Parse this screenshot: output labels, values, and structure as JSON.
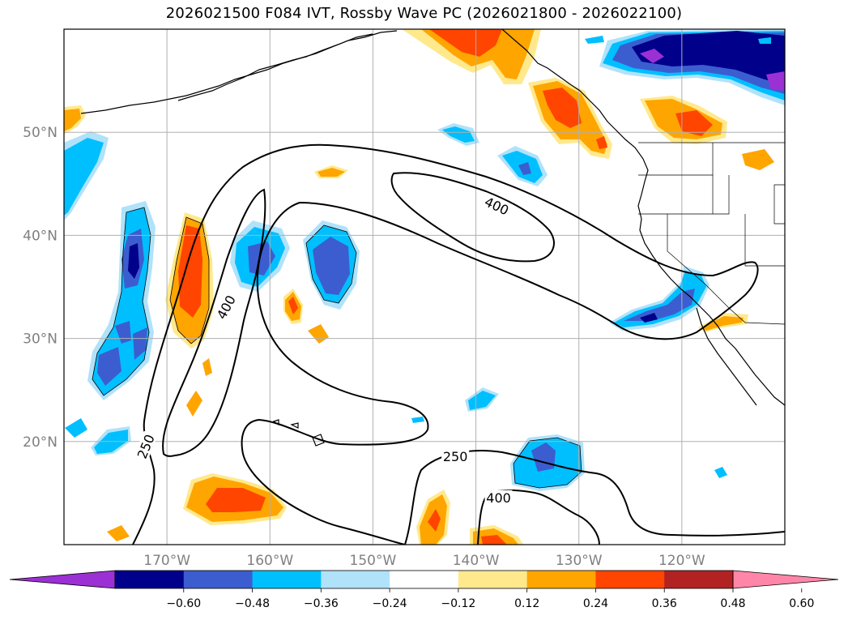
{
  "title": "2026021500 F084 IVT, Rossby Wave PC (2026021800 - 2026022100)",
  "map": {
    "extent": {
      "lon_min": -180,
      "lon_max": -110,
      "lat_min": 10,
      "lat_max": 60
    },
    "lat_labels": [
      {
        "lat": 50,
        "label": "50°N"
      },
      {
        "lat": 40,
        "label": "40°N"
      },
      {
        "lat": 30,
        "label": "30°N"
      },
      {
        "lat": 20,
        "label": "20°N"
      }
    ],
    "lon_labels": [
      {
        "lon": -170,
        "label": "170°W"
      },
      {
        "lon": -160,
        "label": "160°W"
      },
      {
        "lon": -150,
        "label": "150°W"
      },
      {
        "lon": -140,
        "label": "140°W"
      },
      {
        "lon": -130,
        "label": "130°W"
      },
      {
        "lon": -120,
        "label": "120°W"
      }
    ],
    "contour_labels": [
      {
        "text": "400",
        "lon": -138,
        "lat": 42.8,
        "rotate": 25
      },
      {
        "text": "400",
        "lon": -164.2,
        "lat": 33,
        "rotate": -62
      },
      {
        "text": "250",
        "lon": -172,
        "lat": 19.5,
        "rotate": -68
      },
      {
        "text": "250",
        "lon": -142,
        "lat": 18.5,
        "rotate": 0
      },
      {
        "text": "400",
        "lon": -137.8,
        "lat": 14.5,
        "rotate": 0
      }
    ]
  },
  "colorbar": {
    "colors": [
      "#9b30d4",
      "#00008b",
      "#3c5dd0",
      "#00bfff",
      "#b0e2fa",
      "#ffffff",
      "#ffe98c",
      "#ffa500",
      "#ff4500",
      "#b22222",
      "#ff86a8"
    ],
    "ticks": [
      "−0.60",
      "−0.48",
      "−0.36",
      "−0.24",
      "−0.12",
      "0.12",
      "0.24",
      "0.36",
      "0.48",
      "0.60"
    ]
  },
  "colors": {
    "grid": "#b0b0b0",
    "coast": "#000000",
    "contour": "#000000",
    "frame": "#000000"
  }
}
